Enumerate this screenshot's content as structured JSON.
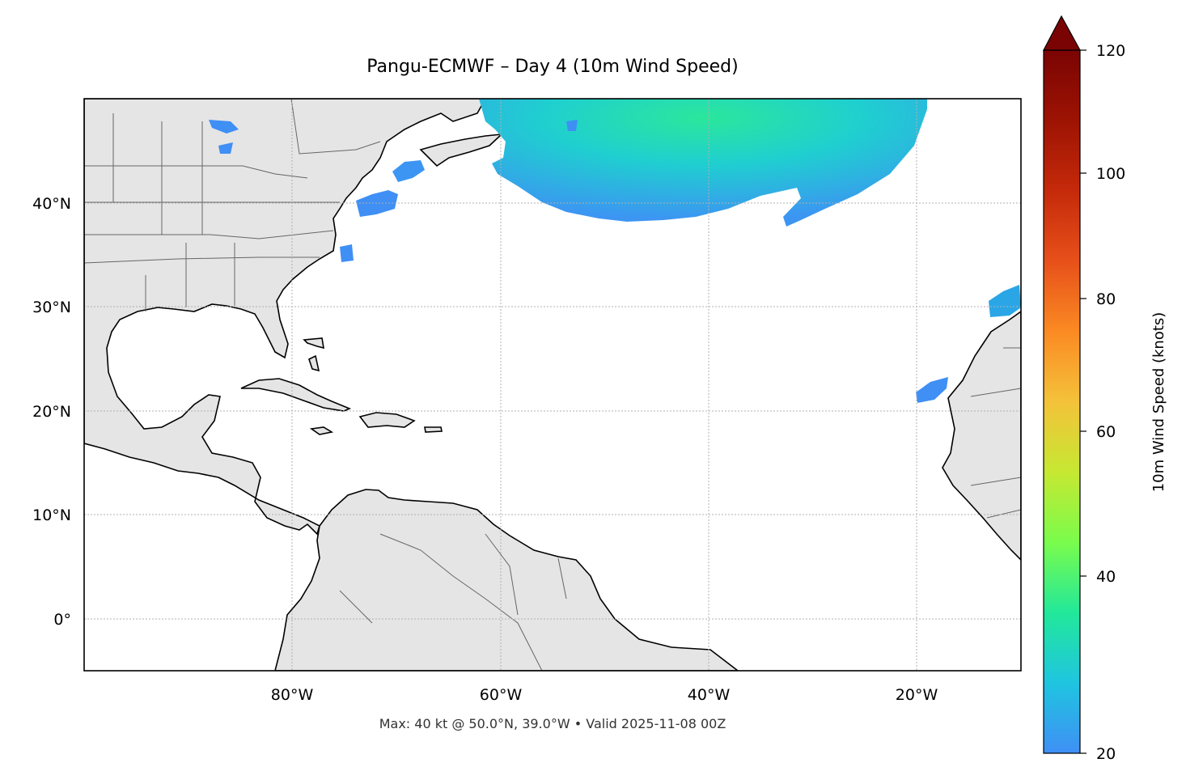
{
  "title": "Pangu-ECMWF – Day 4 (10m Wind Speed)",
  "footnote": "Max: 40 kt @ 50.0°N, 39.0°W • Valid 2025-11-08 00Z",
  "map": {
    "lon_range": [
      -100,
      -10
    ],
    "lat_range": [
      -5,
      50
    ],
    "lat_ticks": [
      {
        "value": 40,
        "label": "40°N"
      },
      {
        "value": 30,
        "label": "30°N"
      },
      {
        "value": 20,
        "label": "20°N"
      },
      {
        "value": 10,
        "label": "10°N"
      },
      {
        "value": 0,
        "label": "0°"
      }
    ],
    "lon_ticks": [
      {
        "value": -80,
        "label": "80°W"
      },
      {
        "value": -60,
        "label": "60°W"
      },
      {
        "value": -40,
        "label": "40°W"
      },
      {
        "value": -20,
        "label": "20°W"
      }
    ],
    "land_color": "#e5e5e5",
    "coast_color": "#000000",
    "border_color": "#666666"
  },
  "colorbar": {
    "label": "10m Wind Speed (knots)",
    "min": 20,
    "max": 120,
    "extend": "max",
    "ticks": [
      {
        "value": 120,
        "label": "120"
      },
      {
        "value": 100,
        "label": "100"
      },
      {
        "value": 80,
        "label": "80"
      },
      {
        "value": 60,
        "label": "60"
      },
      {
        "value": 40,
        "label": "40"
      },
      {
        "value": 20,
        "label": "20"
      }
    ],
    "colormap": "turbo"
  }
}
